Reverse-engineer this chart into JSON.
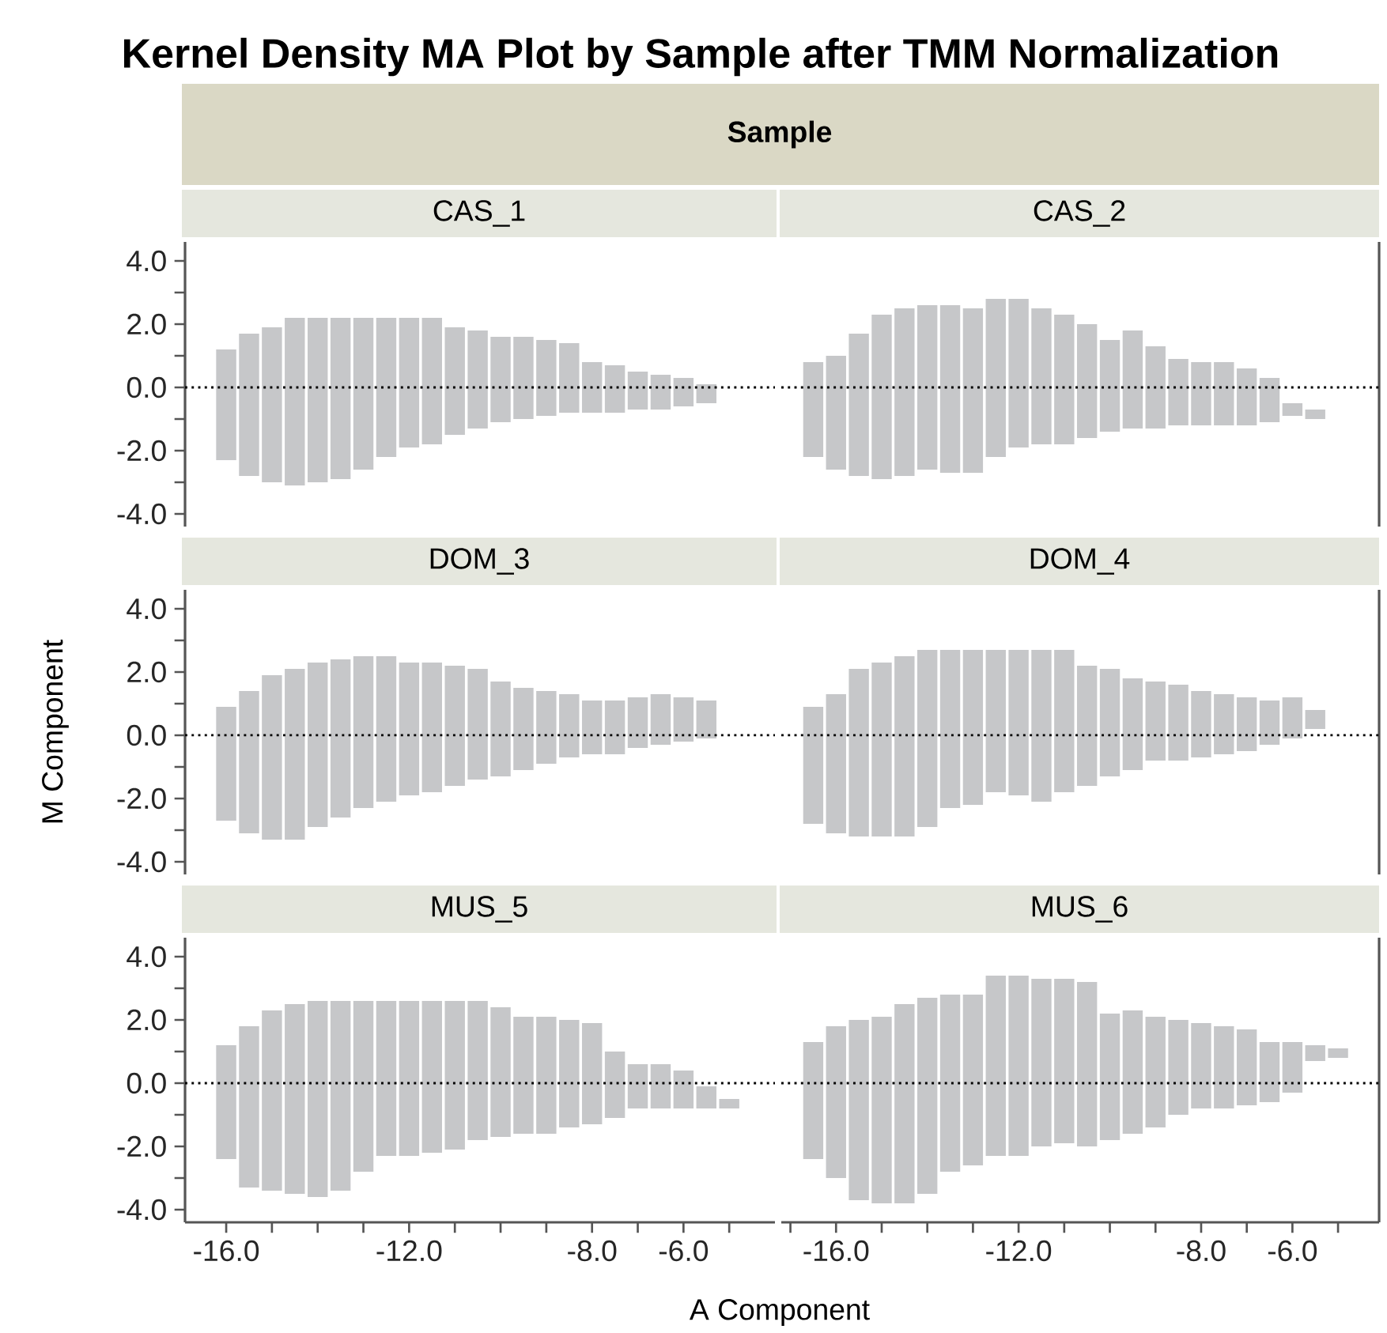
{
  "chart_data": [
    {
      "type": "bar",
      "title": "CAS_1",
      "annotations": [
        "Kernel Density MA Plot by Sample after TMM Normalization",
        "Sample"
      ],
      "x": [
        -16,
        -15.5,
        -15,
        -14.5,
        -14,
        -13.5,
        -13,
        -12.5,
        -12,
        -11.5,
        -11,
        -10.5,
        -10,
        -9.5,
        -9,
        -8.5,
        -8,
        -7.5,
        -7,
        -6.5,
        -6,
        -5.5
      ],
      "base": [
        -2.3,
        -2.8,
        -3.0,
        -3.1,
        -3.0,
        -2.9,
        -2.6,
        -2.2,
        -1.9,
        -1.8,
        -1.5,
        -1.3,
        -1.1,
        -1.0,
        -0.9,
        -0.8,
        -0.8,
        -0.8,
        -0.7,
        -0.7,
        -0.6,
        -0.5
      ],
      "values": [
        3.5,
        4.5,
        4.9,
        5.3,
        5.2,
        5.1,
        4.8,
        4.4,
        4.1,
        4.0,
        3.4,
        3.1,
        2.7,
        2.6,
        2.4,
        2.2,
        1.6,
        1.5,
        1.2,
        1.1,
        0.9,
        0.6
      ],
      "color": "#c6c7c9",
      "xlim": [
        -16.9,
        -4.0
      ],
      "ylim": [
        -4.4,
        4.6
      ],
      "yticks": [
        {
          "value": -4,
          "label": "-4.0"
        },
        {
          "value": -3,
          "label": null
        },
        {
          "value": -2,
          "label": "-2.0"
        },
        {
          "value": -1,
          "label": null
        },
        {
          "value": 0,
          "label": "0.0"
        },
        {
          "value": 1,
          "label": null
        },
        {
          "value": 2,
          "label": "2.0"
        },
        {
          "value": 3,
          "label": null
        },
        {
          "value": 4,
          "label": "4.0"
        }
      ],
      "ref_lines": [
        {
          "axis": "y",
          "value": 0,
          "color": "#000000",
          "line_style": "dotted"
        }
      ],
      "tick_labels": "y"
    },
    {
      "type": "bar",
      "title": "CAS_2",
      "x": [
        -16.5,
        -16,
        -15.5,
        -15,
        -14.5,
        -14,
        -13.5,
        -13,
        -12.5,
        -12,
        -11.5,
        -11,
        -10.5,
        -10,
        -9.5,
        -9,
        -8.5,
        -8,
        -7.5,
        -7,
        -6.5,
        -6,
        -5.5
      ],
      "base": [
        -2.2,
        -2.6,
        -2.8,
        -2.9,
        -2.8,
        -2.6,
        -2.7,
        -2.7,
        -2.2,
        -1.9,
        -1.8,
        -1.8,
        -1.6,
        -1.4,
        -1.3,
        -1.3,
        -1.2,
        -1.2,
        -1.2,
        -1.2,
        -1.1,
        -0.9,
        -1.0
      ],
      "values": [
        3.0,
        3.6,
        4.5,
        5.2,
        5.3,
        5.2,
        5.3,
        5.2,
        5.0,
        4.7,
        4.3,
        4.1,
        3.6,
        2.9,
        3.1,
        2.6,
        2.1,
        2.0,
        2.0,
        1.8,
        1.4,
        0.4,
        0.3
      ],
      "color": "#c6c7c9",
      "xlim": [
        -17.2,
        -4.1
      ],
      "ylim": [
        -4.4,
        4.6
      ],
      "ref_lines": [
        {
          "axis": "y",
          "value": 0,
          "color": "#000000",
          "line_style": "dotted"
        }
      ],
      "tick_labels": false
    },
    {
      "type": "bar",
      "title": "DOM_3",
      "ylabel": "M Component",
      "x": [
        -16,
        -15.5,
        -15,
        -14.5,
        -14,
        -13.5,
        -13,
        -12.5,
        -12,
        -11.5,
        -11,
        -10.5,
        -10,
        -9.5,
        -9,
        -8.5,
        -8,
        -7.5,
        -7,
        -6.5,
        -6,
        -5.5
      ],
      "base": [
        -2.7,
        -3.1,
        -3.3,
        -3.3,
        -2.9,
        -2.6,
        -2.3,
        -2.1,
        -1.9,
        -1.8,
        -1.6,
        -1.4,
        -1.3,
        -1.1,
        -0.9,
        -0.7,
        -0.6,
        -0.6,
        -0.4,
        -0.3,
        -0.2,
        -0.1
      ],
      "values": [
        3.6,
        4.5,
        5.2,
        5.4,
        5.2,
        5.0,
        4.8,
        4.6,
        4.2,
        4.1,
        3.8,
        3.5,
        3.0,
        2.6,
        2.3,
        2.0,
        1.7,
        1.7,
        1.6,
        1.6,
        1.4,
        1.2
      ],
      "color": "#c6c7c9",
      "xlim": [
        -16.9,
        -4.0
      ],
      "ylim": [
        -4.4,
        4.6
      ],
      "yticks": [
        {
          "value": -4,
          "label": "-4.0"
        },
        {
          "value": -3,
          "label": null
        },
        {
          "value": -2,
          "label": "-2.0"
        },
        {
          "value": -1,
          "label": null
        },
        {
          "value": 0,
          "label": "0.0"
        },
        {
          "value": 1,
          "label": null
        },
        {
          "value": 2,
          "label": "2.0"
        },
        {
          "value": 3,
          "label": null
        },
        {
          "value": 4,
          "label": "4.0"
        }
      ],
      "ref_lines": [
        {
          "axis": "y",
          "value": 0,
          "color": "#000000",
          "line_style": "dotted"
        }
      ],
      "tick_labels": "y"
    },
    {
      "type": "bar",
      "title": "DOM_4",
      "x": [
        -16.5,
        -16,
        -15.5,
        -15,
        -14.5,
        -14,
        -13.5,
        -13,
        -12.5,
        -12,
        -11.5,
        -11,
        -10.5,
        -10,
        -9.5,
        -9,
        -8.5,
        -8,
        -7.5,
        -7,
        -6.5,
        -6,
        -5.5
      ],
      "base": [
        -2.8,
        -3.1,
        -3.2,
        -3.2,
        -3.2,
        -2.9,
        -2.3,
        -2.2,
        -1.8,
        -1.9,
        -2.1,
        -1.8,
        -1.6,
        -1.3,
        -1.1,
        -0.8,
        -0.8,
        -0.7,
        -0.6,
        -0.5,
        -0.3,
        -0.1,
        0.2
      ],
      "values": [
        3.7,
        4.4,
        5.3,
        5.5,
        5.7,
        5.6,
        5.0,
        4.9,
        4.5,
        4.6,
        4.8,
        4.5,
        3.8,
        3.4,
        2.9,
        2.5,
        2.4,
        2.1,
        1.9,
        1.7,
        1.4,
        1.3,
        0.6
      ],
      "color": "#c6c7c9",
      "xlim": [
        -17.2,
        -4.1
      ],
      "ylim": [
        -4.4,
        4.6
      ],
      "ref_lines": [
        {
          "axis": "y",
          "value": 0,
          "color": "#000000",
          "line_style": "dotted"
        }
      ],
      "tick_labels": false
    },
    {
      "type": "bar",
      "title": "MUS_5",
      "xlabel": "A Component",
      "x": [
        -16,
        -15.5,
        -15,
        -14.5,
        -14,
        -13.5,
        -13,
        -12.5,
        -12,
        -11.5,
        -11,
        -10.5,
        -10,
        -9.5,
        -9,
        -8.5,
        -8,
        -7.5,
        -7,
        -6.5,
        -6,
        -5.5,
        -5
      ],
      "base": [
        -2.4,
        -3.3,
        -3.4,
        -3.5,
        -3.6,
        -3.4,
        -2.8,
        -2.3,
        -2.3,
        -2.2,
        -2.1,
        -1.8,
        -1.7,
        -1.6,
        -1.6,
        -1.4,
        -1.3,
        -1.1,
        -0.8,
        -0.8,
        -0.8,
        -0.8,
        -0.8
      ],
      "values": [
        3.6,
        5.1,
        5.7,
        6.0,
        6.2,
        6.0,
        5.4,
        4.9,
        4.9,
        4.8,
        4.7,
        4.4,
        4.1,
        3.7,
        3.7,
        3.4,
        3.2,
        2.1,
        1.4,
        1.4,
        1.2,
        0.7,
        0.3
      ],
      "color": "#c6c7c9",
      "xlim": [
        -16.9,
        -4.0
      ],
      "ylim": [
        -4.4,
        4.6
      ],
      "xticks": [
        {
          "value": -16,
          "label": "-16.0"
        },
        {
          "value": -15,
          "label": null
        },
        {
          "value": -14,
          "label": null
        },
        {
          "value": -13,
          "label": null
        },
        {
          "value": -12,
          "label": "-12.0"
        },
        {
          "value": -11,
          "label": null
        },
        {
          "value": -10,
          "label": null
        },
        {
          "value": -9,
          "label": null
        },
        {
          "value": -8,
          "label": "-8.0"
        },
        {
          "value": -7,
          "label": null
        },
        {
          "value": -6,
          "label": "-6.0"
        },
        {
          "value": -5,
          "label": null
        }
      ],
      "yticks": [
        {
          "value": -4,
          "label": "-4.0"
        },
        {
          "value": -3,
          "label": null
        },
        {
          "value": -2,
          "label": "-2.0"
        },
        {
          "value": -1,
          "label": null
        },
        {
          "value": 0,
          "label": "0.0"
        },
        {
          "value": 1,
          "label": null
        },
        {
          "value": 2,
          "label": "2.0"
        },
        {
          "value": 3,
          "label": null
        },
        {
          "value": 4,
          "label": "4.0"
        }
      ],
      "ref_lines": [
        {
          "axis": "y",
          "value": 0,
          "color": "#000000",
          "line_style": "dotted"
        }
      ]
    },
    {
      "type": "bar",
      "title": "MUS_6",
      "x": [
        -16.5,
        -16,
        -15.5,
        -15,
        -14.5,
        -14,
        -13.5,
        -13,
        -12.5,
        -12,
        -11.5,
        -11,
        -10.5,
        -10,
        -9.5,
        -9,
        -8.5,
        -8,
        -7.5,
        -7,
        -6.5,
        -6,
        -5.5,
        -5
      ],
      "base": [
        -2.4,
        -3.0,
        -3.7,
        -3.8,
        -3.8,
        -3.5,
        -2.8,
        -2.6,
        -2.3,
        -2.3,
        -2.0,
        -1.9,
        -2.0,
        -1.8,
        -1.6,
        -1.4,
        -1.0,
        -0.8,
        -0.8,
        -0.7,
        -0.6,
        -0.3,
        0.7,
        0.8
      ],
      "values": [
        3.7,
        4.8,
        5.7,
        5.9,
        6.3,
        6.2,
        5.6,
        5.4,
        5.7,
        5.7,
        5.3,
        5.2,
        5.2,
        4.0,
        3.9,
        3.5,
        3.0,
        2.7,
        2.6,
        2.4,
        1.9,
        1.6,
        0.5,
        0.3
      ],
      "color": "#c6c7c9",
      "xlim": [
        -17.2,
        -4.1
      ],
      "ylim": [
        -4.4,
        4.6
      ],
      "xticks": [
        {
          "value": -17,
          "label": null
        },
        {
          "value": -16,
          "label": "-16.0"
        },
        {
          "value": -15,
          "label": null
        },
        {
          "value": -14,
          "label": null
        },
        {
          "value": -13,
          "label": null
        },
        {
          "value": -12,
          "label": "-12.0"
        },
        {
          "value": -11,
          "label": null
        },
        {
          "value": -10,
          "label": null
        },
        {
          "value": -9,
          "label": null
        },
        {
          "value": -8,
          "label": "-8.0"
        },
        {
          "value": -7,
          "label": null
        },
        {
          "value": -6,
          "label": "-6.0"
        },
        {
          "value": -5,
          "label": null
        }
      ],
      "ref_lines": [
        {
          "axis": "y",
          "value": 0,
          "color": "#000000",
          "line_style": "dotted"
        }
      ],
      "tick_labels": "x"
    }
  ]
}
